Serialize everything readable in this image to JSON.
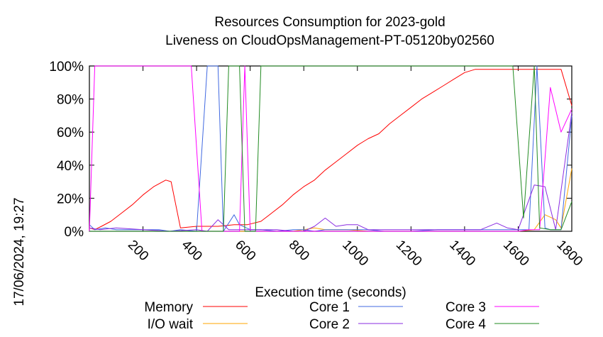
{
  "timestamp": "17/06/2024, 19:27",
  "chart_data": {
    "type": "line",
    "title": "Resources Consumption for 2023-gold",
    "subtitle": "Liveness on CloudOpsManagement-PT-05120by02560",
    "xlabel": "Execution time (seconds)",
    "ylabel": "",
    "xlim": [
      0,
      1800
    ],
    "ylim": [
      0,
      100
    ],
    "xticks": [
      200,
      400,
      600,
      800,
      1000,
      1200,
      1400,
      1600,
      1800
    ],
    "xtick_labels": [
      "200",
      "400",
      "600",
      "800",
      "1000",
      "1200",
      "1400",
      "1600",
      "1800"
    ],
    "yticks": [
      0,
      20,
      40,
      60,
      80,
      100
    ],
    "ytick_labels": [
      "0%",
      "20%",
      "40%",
      "60%",
      "80%",
      "100%"
    ],
    "grid": false,
    "legend_position": "bottom",
    "series": [
      {
        "name": "Memory",
        "color": "#ff0000",
        "points": [
          [
            0,
            2
          ],
          [
            20,
            1
          ],
          [
            45,
            3
          ],
          [
            80,
            6
          ],
          [
            120,
            11
          ],
          [
            160,
            16
          ],
          [
            200,
            22
          ],
          [
            240,
            27
          ],
          [
            285,
            31
          ],
          [
            305,
            30
          ],
          [
            340,
            2
          ],
          [
            400,
            3
          ],
          [
            440,
            3
          ],
          [
            480,
            3
          ],
          [
            540,
            4
          ],
          [
            590,
            4
          ],
          [
            640,
            6
          ],
          [
            680,
            11
          ],
          [
            720,
            16
          ],
          [
            760,
            22
          ],
          [
            800,
            27
          ],
          [
            840,
            31
          ],
          [
            880,
            37
          ],
          [
            920,
            42
          ],
          [
            960,
            47
          ],
          [
            1000,
            52
          ],
          [
            1040,
            56
          ],
          [
            1080,
            59
          ],
          [
            1120,
            65
          ],
          [
            1160,
            70
          ],
          [
            1200,
            75
          ],
          [
            1240,
            80
          ],
          [
            1280,
            84
          ],
          [
            1320,
            88
          ],
          [
            1360,
            92
          ],
          [
            1400,
            96
          ],
          [
            1440,
            98
          ],
          [
            1480,
            98
          ],
          [
            1520,
            98
          ],
          [
            1560,
            98
          ],
          [
            1600,
            98
          ],
          [
            1640,
            98
          ],
          [
            1680,
            98
          ],
          [
            1760,
            98
          ],
          [
            1800,
            76
          ]
        ]
      },
      {
        "name": "I/O wait",
        "color": "#ffa500",
        "points": [
          [
            0,
            0
          ],
          [
            400,
            0
          ],
          [
            760,
            0
          ],
          [
            800,
            1
          ],
          [
            840,
            2
          ],
          [
            880,
            1
          ],
          [
            960,
            1
          ],
          [
            1040,
            0
          ],
          [
            1600,
            0
          ],
          [
            1660,
            1
          ],
          [
            1700,
            10
          ],
          [
            1740,
            7
          ],
          [
            1760,
            2
          ],
          [
            1800,
            38
          ]
        ]
      },
      {
        "name": "Core 1",
        "color": "#4169e1",
        "points": [
          [
            0,
            4
          ],
          [
            20,
            1
          ],
          [
            60,
            2
          ],
          [
            100,
            1
          ],
          [
            150,
            1
          ],
          [
            200,
            1
          ],
          [
            260,
            1
          ],
          [
            300,
            0
          ],
          [
            340,
            1
          ],
          [
            400,
            0
          ],
          [
            440,
            100
          ],
          [
            480,
            100
          ],
          [
            500,
            0
          ],
          [
            540,
            10
          ],
          [
            560,
            4
          ],
          [
            600,
            1
          ],
          [
            640,
            1
          ],
          [
            700,
            0
          ],
          [
            760,
            1
          ],
          [
            800,
            1
          ],
          [
            840,
            0
          ],
          [
            880,
            1
          ],
          [
            960,
            1
          ],
          [
            1040,
            1
          ],
          [
            1100,
            0
          ],
          [
            1200,
            0
          ],
          [
            1300,
            1
          ],
          [
            1400,
            1
          ],
          [
            1500,
            1
          ],
          [
            1600,
            1
          ],
          [
            1640,
            1
          ],
          [
            1670,
            100
          ],
          [
            1700,
            2
          ],
          [
            1720,
            1
          ],
          [
            1760,
            1
          ],
          [
            1800,
            70
          ]
        ]
      },
      {
        "name": "Core 2",
        "color": "#8a2be2",
        "points": [
          [
            0,
            2
          ],
          [
            40,
            1
          ],
          [
            100,
            2
          ],
          [
            200,
            1
          ],
          [
            300,
            0
          ],
          [
            400,
            1
          ],
          [
            440,
            0
          ],
          [
            480,
            7
          ],
          [
            520,
            1
          ],
          [
            560,
            1
          ],
          [
            600,
            1
          ],
          [
            700,
            1
          ],
          [
            760,
            0
          ],
          [
            800,
            0
          ],
          [
            840,
            3
          ],
          [
            880,
            8
          ],
          [
            920,
            3
          ],
          [
            960,
            4
          ],
          [
            1000,
            4
          ],
          [
            1040,
            1
          ],
          [
            1100,
            1
          ],
          [
            1200,
            1
          ],
          [
            1300,
            1
          ],
          [
            1400,
            1
          ],
          [
            1460,
            1
          ],
          [
            1520,
            5
          ],
          [
            1560,
            2
          ],
          [
            1600,
            1
          ],
          [
            1660,
            28
          ],
          [
            1700,
            27
          ],
          [
            1740,
            1
          ],
          [
            1800,
            72
          ]
        ]
      },
      {
        "name": "Core 3",
        "color": "#ff00ff",
        "points": [
          [
            0,
            0
          ],
          [
            20,
            100
          ],
          [
            100,
            100
          ],
          [
            200,
            100
          ],
          [
            300,
            100
          ],
          [
            380,
            100
          ],
          [
            420,
            0
          ],
          [
            460,
            0
          ],
          [
            520,
            0
          ],
          [
            560,
            0
          ],
          [
            580,
            100
          ],
          [
            600,
            0
          ],
          [
            640,
            0
          ],
          [
            680,
            0
          ],
          [
            740,
            0
          ],
          [
            800,
            0
          ],
          [
            900,
            0
          ],
          [
            1000,
            0
          ],
          [
            1100,
            0
          ],
          [
            1200,
            0
          ],
          [
            1300,
            0
          ],
          [
            1400,
            0
          ],
          [
            1500,
            0
          ],
          [
            1600,
            0
          ],
          [
            1640,
            1
          ],
          [
            1680,
            1
          ],
          [
            1720,
            87
          ],
          [
            1760,
            60
          ],
          [
            1800,
            74
          ]
        ]
      },
      {
        "name": "Core 4",
        "color": "#228b22",
        "points": [
          [
            0,
            0
          ],
          [
            300,
            0
          ],
          [
            440,
            0
          ],
          [
            500,
            0
          ],
          [
            520,
            100
          ],
          [
            560,
            100
          ],
          [
            580,
            0
          ],
          [
            620,
            0
          ],
          [
            640,
            100
          ],
          [
            1580,
            100
          ],
          [
            1620,
            8
          ],
          [
            1660,
            100
          ],
          [
            1680,
            2
          ],
          [
            1720,
            1
          ],
          [
            1760,
            1
          ],
          [
            1800,
            18
          ]
        ]
      }
    ]
  }
}
